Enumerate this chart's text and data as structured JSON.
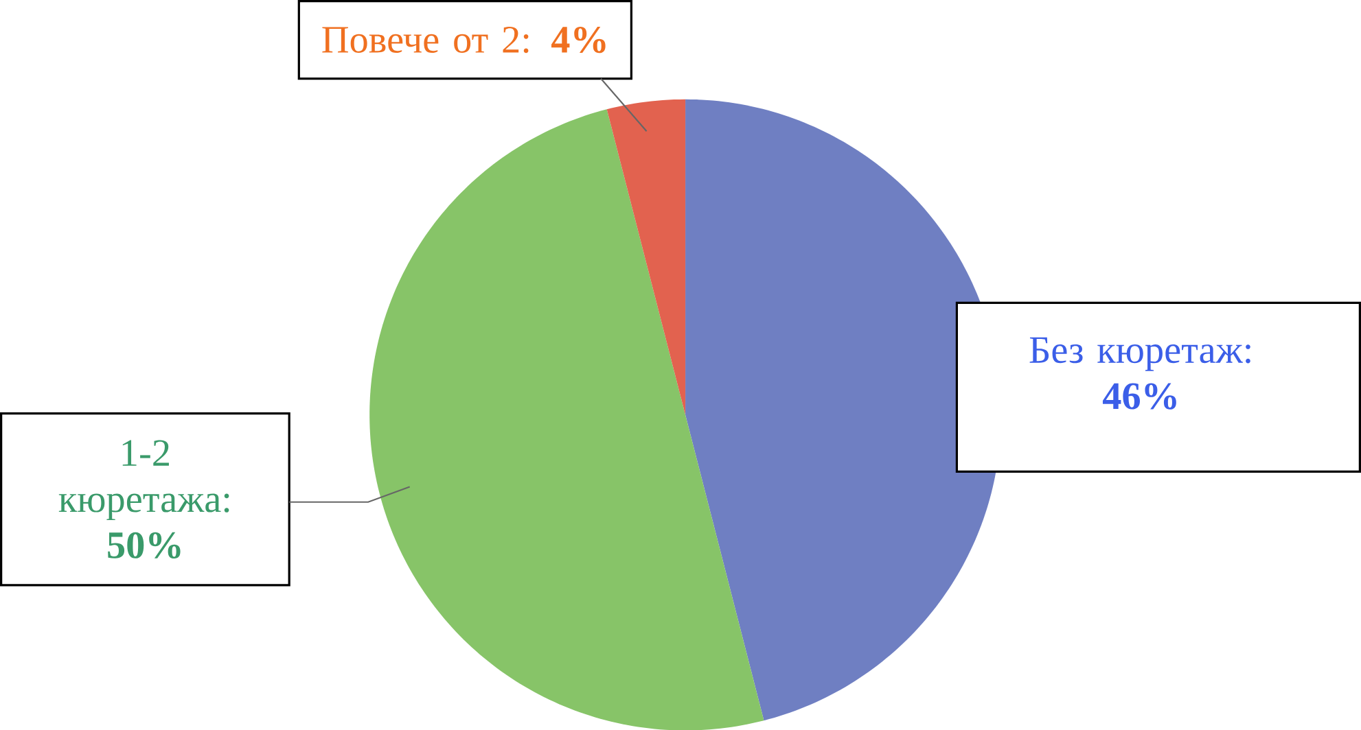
{
  "chart_data": {
    "type": "pie",
    "categories": [
      "Без кюретаж",
      "1-2 кюретажа",
      "Повече от 2"
    ],
    "values": [
      46,
      50,
      4
    ],
    "colors": [
      "#6f7fc2",
      "#87c468",
      "#e2624f"
    ],
    "value_labels": [
      ": **46%**",
      ": **50%**",
      ": **4%**"
    ]
  }
}
